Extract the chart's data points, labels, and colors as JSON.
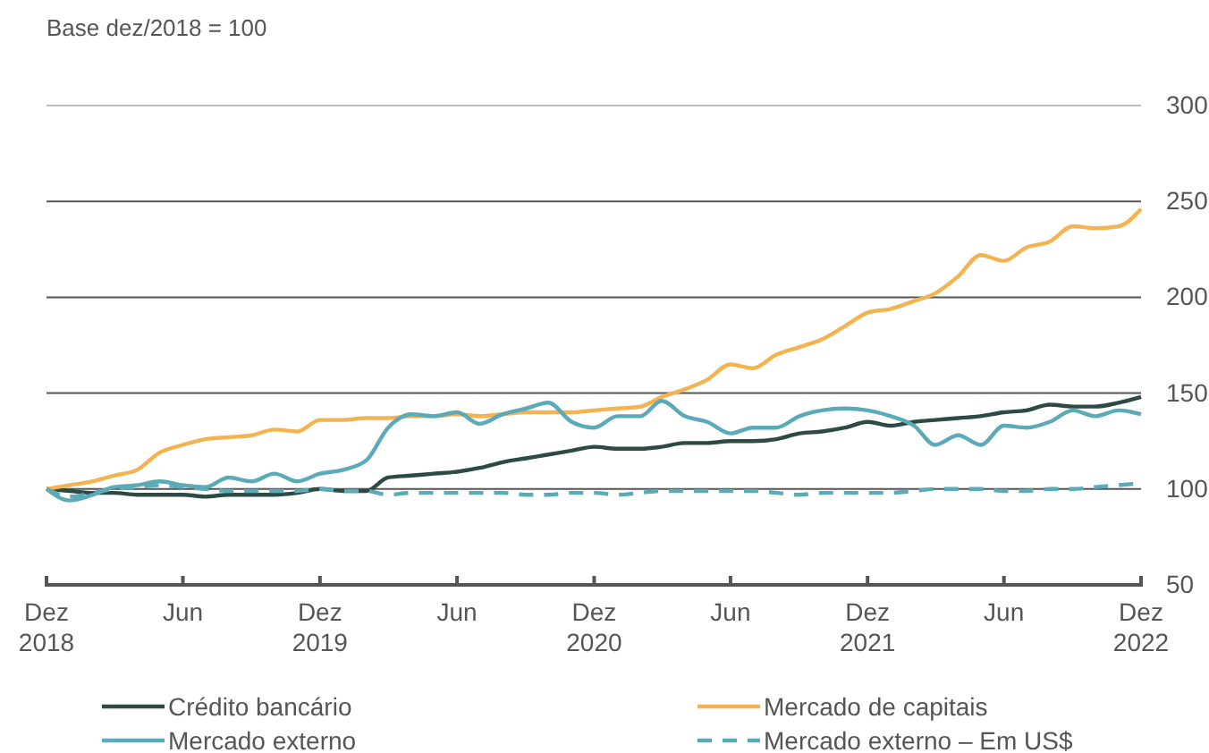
{
  "chart_data": {
    "type": "line",
    "ylabel": "Base dez/2018 = 100",
    "x": [
      "2018-12",
      "2019-01",
      "2019-02",
      "2019-03",
      "2019-04",
      "2019-05",
      "2019-06",
      "2019-07",
      "2019-08",
      "2019-09",
      "2019-10",
      "2019-11",
      "2019-12",
      "2020-01",
      "2020-02",
      "2020-03",
      "2020-04",
      "2020-05",
      "2020-06",
      "2020-07",
      "2020-08",
      "2020-09",
      "2020-10",
      "2020-11",
      "2020-12",
      "2021-01",
      "2021-02",
      "2021-03",
      "2021-04",
      "2021-05",
      "2021-06",
      "2021-07",
      "2021-08",
      "2021-09",
      "2021-10",
      "2021-11",
      "2021-12",
      "2022-01",
      "2022-02",
      "2022-03",
      "2022-04",
      "2022-05",
      "2022-06",
      "2022-07",
      "2022-08",
      "2022-09",
      "2022-10",
      "2022-11",
      "2022-12"
    ],
    "series": [
      {
        "name": "Crédito bancário",
        "color": "#2e4a45",
        "values": [
          100,
          99,
          98,
          98,
          97,
          97,
          97,
          96,
          97,
          97,
          97,
          98,
          100,
          99,
          99,
          106,
          107,
          108,
          109,
          111,
          114,
          116,
          118,
          120,
          122,
          121,
          121,
          122,
          124,
          124,
          125,
          125,
          126,
          129,
          130,
          132,
          135,
          133,
          135,
          136,
          137,
          138,
          140,
          141,
          144,
          143,
          143,
          145,
          148
        ]
      },
      {
        "name": "Mercado de capitais",
        "color": "#f2b350",
        "values": [
          100,
          102,
          104,
          107,
          110,
          119,
          123,
          126,
          127,
          128,
          131,
          130,
          136,
          136,
          137,
          137,
          138,
          138,
          139,
          138,
          139,
          140,
          140,
          140,
          141,
          142,
          143,
          148,
          152,
          157,
          165,
          163,
          170,
          174,
          178,
          185,
          192,
          194,
          198,
          202,
          211,
          222,
          219,
          226,
          229,
          237,
          236,
          237,
          246
        ]
      },
      {
        "name": "Mercado externo",
        "color": "#5aaab8",
        "values": [
          100,
          94,
          97,
          101,
          102,
          104,
          102,
          101,
          106,
          104,
          108,
          104,
          108,
          110,
          115,
          132,
          139,
          138,
          140,
          134,
          139,
          142,
          145,
          135,
          132,
          138,
          138,
          146,
          138,
          135,
          129,
          132,
          132,
          138,
          141,
          142,
          141,
          138,
          133,
          123,
          128,
          123,
          133,
          132,
          135,
          141,
          138,
          141,
          139
        ]
      },
      {
        "name": "Mercado externo – Em US$",
        "color": "#5aaab8",
        "line_style": "dashed",
        "values": [
          100,
          96,
          98,
          100,
          101,
          102,
          101,
          100,
          99,
          99,
          99,
          99,
          100,
          99,
          99,
          97,
          98,
          98,
          98,
          98,
          98,
          97,
          97,
          98,
          98,
          97,
          98,
          99,
          99,
          99,
          99,
          99,
          98,
          97,
          98,
          98,
          98,
          98,
          99,
          100,
          100,
          100,
          99,
          99,
          100,
          100,
          101,
          102,
          103
        ]
      }
    ],
    "xlim": [
      "2018-12",
      "2022-12"
    ],
    "xticks": [
      {
        "value": "2018-12",
        "label": "Dez 2018"
      },
      {
        "value": "2019-06",
        "label": "Jun"
      },
      {
        "value": "2019-12",
        "label": "Dez 2019"
      },
      {
        "value": "2020-06",
        "label": "Jun"
      },
      {
        "value": "2020-12",
        "label": "Dez 2020"
      },
      {
        "value": "2021-06",
        "label": "Jun"
      },
      {
        "value": "2021-12",
        "label": "Dez 2021"
      },
      {
        "value": "2022-06",
        "label": "Jun"
      },
      {
        "value": "2022-12",
        "label": "Dez 2022"
      }
    ],
    "ylim": [
      50,
      300
    ],
    "yticks": [
      50,
      100,
      150,
      200,
      250,
      300
    ],
    "grid": "y",
    "legend": "bottom",
    "line_style": "solid",
    "marker": "none"
  }
}
